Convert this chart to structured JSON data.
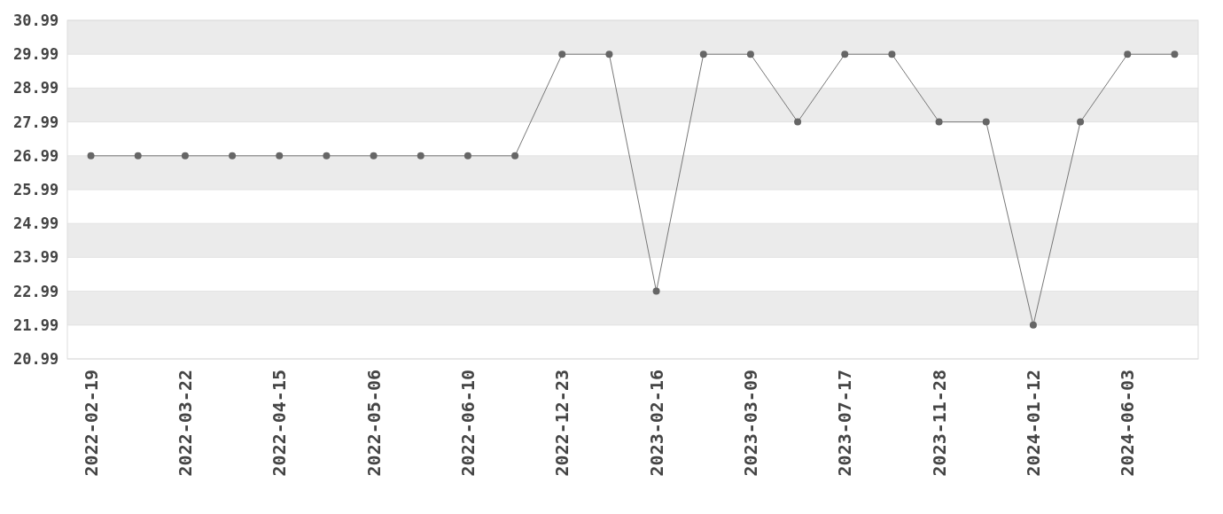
{
  "chart_data": {
    "type": "line",
    "categories": [
      "2022-02-19",
      null,
      "2022-03-22",
      null,
      "2022-04-15",
      null,
      "2022-05-06",
      null,
      "2022-06-10",
      null,
      "2022-12-23",
      null,
      "2023-02-16",
      null,
      "2023-03-09",
      null,
      "2023-07-17",
      null,
      "2023-11-28",
      null,
      "2024-01-12",
      null,
      "2024-06-03",
      null
    ],
    "series": [
      {
        "color": "#777777",
        "values": [
          26.99,
          26.99,
          26.99,
          26.99,
          26.99,
          26.99,
          26.99,
          26.99,
          26.99,
          26.99,
          29.99,
          29.99,
          22.99,
          29.99,
          29.99,
          27.99,
          29.99,
          29.99,
          27.99,
          27.99,
          21.99,
          27.99,
          29.99,
          29.99
        ]
      }
    ],
    "ylim": [
      20.99,
      30.99
    ],
    "yticks": [
      20.99,
      21.99,
      22.99,
      23.99,
      24.99,
      25.99,
      26.99,
      27.99,
      28.99,
      29.99,
      30.99
    ],
    "grid": true,
    "marker": "circle",
    "line_style": "solid"
  }
}
